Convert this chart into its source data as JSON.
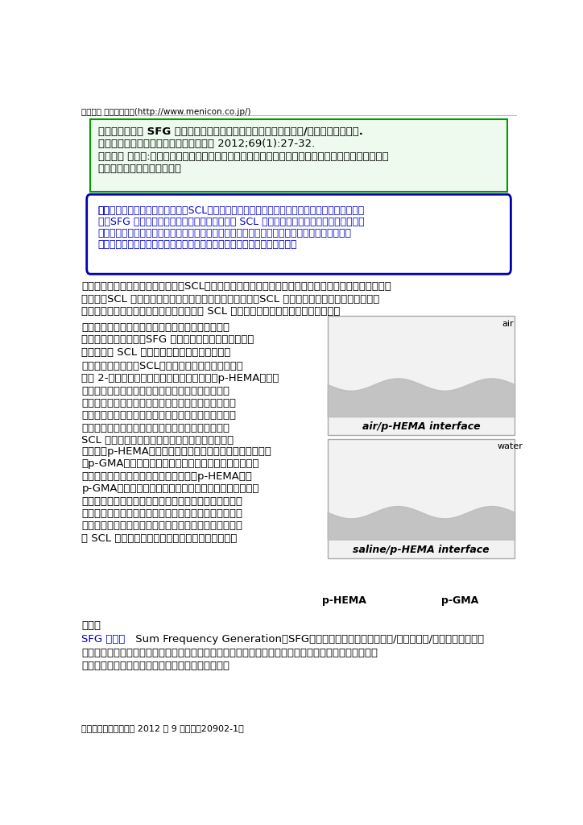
{
  "page_bg": "#ffffff",
  "header_text": "メニコン ホームページ(http://www.menicon.co.jp/)",
  "box1_lines": [
    "論文タイトル： SFG 分光法を用いたソフトコンタクトレンズ材料/水界面の構造解析.",
    "掲載雑誌、年、巻、頁：高分子論文集　 2012;69(1):27-32.",
    "著者名　 所属）:伊藤裕治、河合哲次、安田窺広（メニコン）、宮前孝行（独）産業技術総合研究所",
    "　　ナノシステム研究部門）"
  ],
  "box2_lines": [
    "概要：ソフトコンタクトレンズ（SCL）材料に使用される高分子ゲル界面の構造を評価するため",
    "に、SFG 分光法を用いて、空気、および水との SCL 界面の構造解析を行いました。高分子",
    "の水和によって主鎖よりも側鎖の方が、配向挙動が大きく異なることが明らかとなり、この違",
    "いにより界面の水のネットワーク構造が変化することが示嘘されました。"
  ],
  "footer_text": "学術情報コーナー　　 2012 年 9 月　　『20902-1』"
}
